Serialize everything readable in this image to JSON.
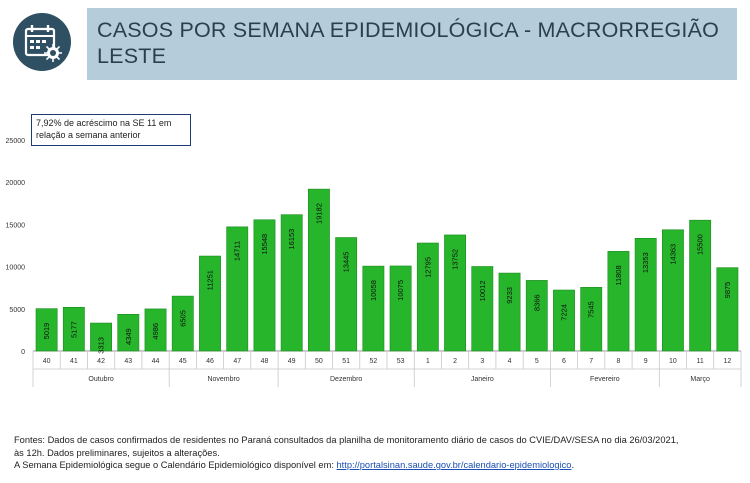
{
  "header": {
    "title": "CASOS POR SEMANA EPIDEMIOLÓGICA - MACRORREGIÃO LESTE",
    "icon": "calendar-virus-icon"
  },
  "annotation": "7,92% de acréscimo na SE 11 em relação a semana anterior",
  "colors": {
    "bar": "#27b52b",
    "bar_stroke": "#1d8a21",
    "header_band": "#b5ccdb",
    "icon_circle": "#2f4f63",
    "title_text": "#2b3f4d"
  },
  "chart_data": {
    "type": "bar",
    "categories": [
      "40",
      "41",
      "42",
      "43",
      "44",
      "45",
      "46",
      "47",
      "48",
      "49",
      "50",
      "51",
      "52",
      "53",
      "1",
      "2",
      "3",
      "4",
      "5",
      "6",
      "7",
      "8",
      "9",
      "10",
      "11",
      "12"
    ],
    "values": [
      5019,
      5177,
      3313,
      4349,
      4986,
      6505,
      11251,
      14711,
      15548,
      16153,
      19182,
      13445,
      10058,
      10075,
      12795,
      13752,
      10012,
      9233,
      8366,
      7224,
      7545,
      11808,
      13353,
      14363,
      15500,
      9875
    ],
    "data_labels": [
      "5019",
      "5177",
      "3313",
      "4349",
      "4986",
      "6505",
      "11251",
      "14711",
      "15548",
      "16153",
      "19182",
      "13445",
      "10058",
      "10075",
      "12795",
      "13752",
      "10012",
      "9233",
      "8366",
      "7224",
      "7545",
      "11808",
      "13353",
      "14363",
      "15500",
      "9875"
    ],
    "months": [
      {
        "label": "Outubro",
        "start": 0,
        "end": 4
      },
      {
        "label": "Novembro",
        "start": 5,
        "end": 8
      },
      {
        "label": "Dezembro",
        "start": 9,
        "end": 13
      },
      {
        "label": "Janeiro",
        "start": 14,
        "end": 18
      },
      {
        "label": "Fevereiro",
        "start": 19,
        "end": 22
      },
      {
        "label": "Março",
        "start": 23,
        "end": 25
      }
    ],
    "yticks": [
      0,
      5000,
      10000,
      15000,
      20000,
      25000
    ],
    "ylim": [
      0,
      25000
    ],
    "grid": false,
    "title": "",
    "xlabel": "",
    "ylabel": ""
  },
  "footer": {
    "line1": "Fontes: Dados de casos confirmados de residentes no Paraná consultados da planilha de monitoramento diário de casos do CVIE/DAV/SESA no dia 26/03/2021,",
    "line2": "às 12h. Dados preliminares, sujeitos a alterações.",
    "line3_prefix": "A Semana Epidemiológica segue o Calendário Epidemiológico disponível em: ",
    "link_text": "http://portalsinan.saude.gov.br/calendario-epidemiologico",
    "line3_suffix": "."
  }
}
